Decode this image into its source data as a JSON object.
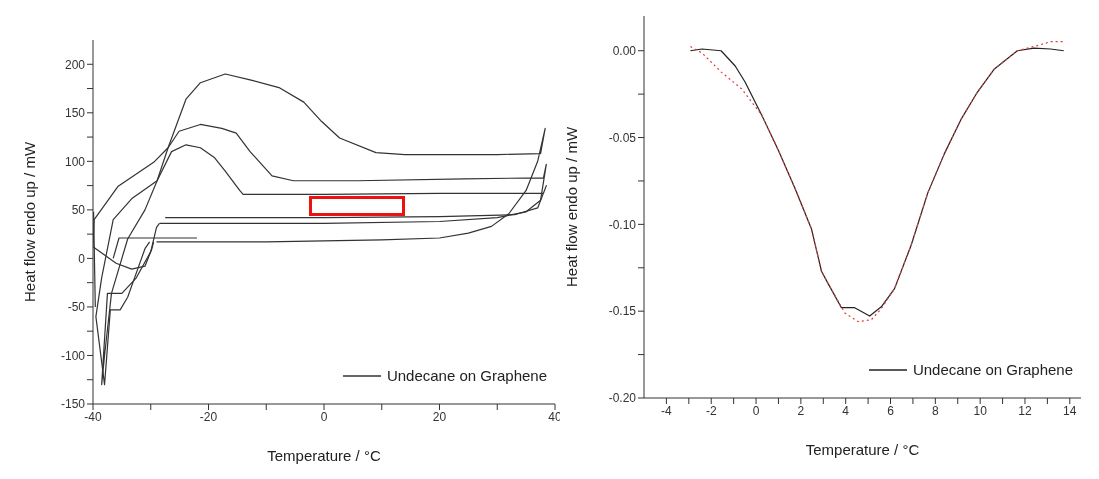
{
  "chart_data": [
    {
      "type": "line",
      "xlabel": "Temperature / °C",
      "ylabel": "Heat flow endo up / mW",
      "xlim": [
        -40,
        40
      ],
      "xticks": [
        -40,
        {
          "value": -30,
          "label": null
        },
        -20,
        {
          "value": -10,
          "label": null
        },
        0,
        {
          "value": 10,
          "label": null
        },
        20,
        {
          "value": 30,
          "label": null
        },
        40
      ],
      "ylim": [
        -150,
        225
      ],
      "yticks": [
        -150,
        {
          "value": -125,
          "label": null
        },
        -100,
        {
          "value": -75,
          "label": null
        },
        -50,
        {
          "value": -25,
          "label": null
        },
        0,
        {
          "value": 25,
          "label": null
        },
        50,
        {
          "value": 75,
          "label": null
        },
        100,
        {
          "value": 125,
          "label": null
        },
        150,
        {
          "value": 175,
          "label": null
        },
        200
      ],
      "legend": "bottom right",
      "series": [
        {
          "name": "Undecane on Graphene",
          "color": "#333333",
          "x": [
            -29,
            -10,
            10,
            20,
            25,
            29,
            32,
            35,
            37,
            38.3,
            37.5,
            30,
            14,
            9,
            2.7,
            -0.4,
            -3.5,
            -7.8,
            -12.8,
            -17.1,
            -21.4,
            -23.9,
            -27,
            -29.5,
            -35.7,
            -39.8,
            -40,
            -36,
            -33.3,
            -31,
            -29.8,
            -29.5
          ],
          "values": [
            17,
            17,
            19,
            21,
            26,
            33,
            46,
            70,
            100,
            134,
            108,
            107,
            107,
            109,
            124,
            141,
            161,
            176,
            184,
            190,
            181,
            164,
            114,
            99,
            74,
            40,
            12,
            -5,
            -11,
            -8,
            10,
            17
          ]
        },
        {
          "color": "#333333",
          "x": [
            -28.5,
            0,
            20,
            30,
            35,
            37.5,
            38.5,
            38,
            24.4,
            5.8,
            -5.3,
            -9,
            -12.8,
            -15.2,
            -17.7,
            -21.4,
            -25.1,
            -27,
            -28.9,
            -33.2,
            -36.5,
            -38.5,
            -39.5,
            -38,
            -37,
            -35.3,
            -34,
            -32.2,
            -31,
            -30.2
          ],
          "values": [
            36,
            36,
            38,
            42,
            48,
            60,
            97,
            83,
            82,
            80,
            80,
            85,
            110,
            129,
            134,
            138,
            131,
            114,
            80,
            62,
            40,
            -20,
            -60,
            -130,
            -53,
            -53,
            -40,
            -10,
            10,
            17
          ]
        },
        {
          "color": "#333333",
          "x": [
            -27.5,
            0,
            20,
            33,
            37,
            38.5,
            38,
            20,
            0,
            -14,
            -14.6,
            -17.1,
            -19,
            -21.4,
            -23.9,
            -26.4,
            -28.9,
            -31,
            -34,
            -36.8,
            -38,
            -38.5,
            -37.5,
            -35,
            -32.5,
            -30,
            -29,
            -28.5
          ],
          "values": [
            42,
            42,
            43,
            45,
            52,
            75,
            67,
            67,
            66,
            66,
            70,
            90,
            104,
            114,
            117,
            110,
            80,
            50,
            20,
            -36,
            -100,
            -130,
            -36,
            -36,
            -20,
            7,
            32,
            36
          ]
        },
        {
          "color": "#333333",
          "x": [
            -36.5,
            -35.5,
            -22
          ],
          "values": [
            0,
            21,
            21
          ]
        },
        {
          "color": "#333333",
          "x": [
            -39.9,
            -39.6
          ],
          "values": [
            48,
            -50
          ]
        }
      ]
    },
    {
      "type": "line",
      "xlabel": "Temperature / °C",
      "ylabel": "Heat flow endo up / mW",
      "xlim": [
        -5,
        14.5
      ],
      "xticks": [
        -4,
        {
          "value": -3,
          "label": null
        },
        -2,
        {
          "value": -1,
          "label": null
        },
        0,
        {
          "value": 1,
          "label": null
        },
        2,
        {
          "value": 3,
          "label": null
        },
        4,
        {
          "value": 5,
          "label": null
        },
        6,
        {
          "value": 7,
          "label": null
        },
        8,
        {
          "value": 9,
          "label": null
        },
        10,
        {
          "value": 11,
          "label": null
        },
        12,
        {
          "value": 13,
          "label": null
        },
        14
      ],
      "ylim": [
        -0.2,
        0.02
      ],
      "yticks": [
        {
          "value": -0.2,
          "label": "-0.20"
        },
        {
          "value": -0.175,
          "label": null
        },
        {
          "value": -0.15,
          "label": "-0.15"
        },
        {
          "value": -0.125,
          "label": null
        },
        {
          "value": -0.1,
          "label": "-0.10"
        },
        {
          "value": -0.075,
          "label": null
        },
        {
          "value": -0.05,
          "label": "-0.05"
        },
        {
          "value": -0.025,
          "label": null
        },
        {
          "value": 0,
          "label": "0.00"
        }
      ],
      "legend": "bottom right",
      "series": [
        {
          "name": "Undecane on Graphene",
          "color": "#222222",
          "x": [
            -2.93,
            -2.41,
            -1.56,
            -0.93,
            -0.49,
            0.25,
            1.0,
            1.73,
            2.47,
            2.92,
            3.21,
            3.81,
            4.4,
            5.07,
            5.59,
            6.18,
            6.92,
            7.66,
            8.4,
            9.14,
            9.88,
            10.62,
            11.66,
            12.4,
            13.14,
            13.73
          ],
          "values": [
            0,
            0.001,
            0,
            -0.0088,
            -0.018,
            -0.037,
            -0.0575,
            -0.079,
            -0.1025,
            -0.127,
            -0.134,
            -0.148,
            -0.148,
            -0.1528,
            -0.1475,
            -0.137,
            -0.112,
            -0.082,
            -0.0594,
            -0.0397,
            -0.0238,
            -0.0107,
            0,
            0.0015,
            0.001,
            0
          ]
        },
        {
          "color": "#e03c3c",
          "line_style": "dotted",
          "x": [
            -2.93,
            -2.41,
            -1.53,
            -0.64,
            0.25,
            1.0,
            1.73,
            2.47,
            2.92,
            3.21,
            3.96,
            4.55,
            5.14,
            5.59,
            6.18,
            6.92,
            7.66,
            8.4,
            9.14,
            9.88,
            10.62,
            11.66,
            12.4,
            13.14,
            13.73
          ],
          "values": [
            0.0024,
            -0.0013,
            -0.0126,
            -0.022,
            -0.037,
            -0.0575,
            -0.079,
            -0.1025,
            -0.127,
            -0.134,
            -0.151,
            -0.156,
            -0.155,
            -0.1485,
            -0.137,
            -0.112,
            -0.082,
            -0.0594,
            -0.0397,
            -0.0238,
            -0.0107,
            0,
            0.0024,
            0.0052,
            0.0052
          ]
        }
      ]
    }
  ]
}
